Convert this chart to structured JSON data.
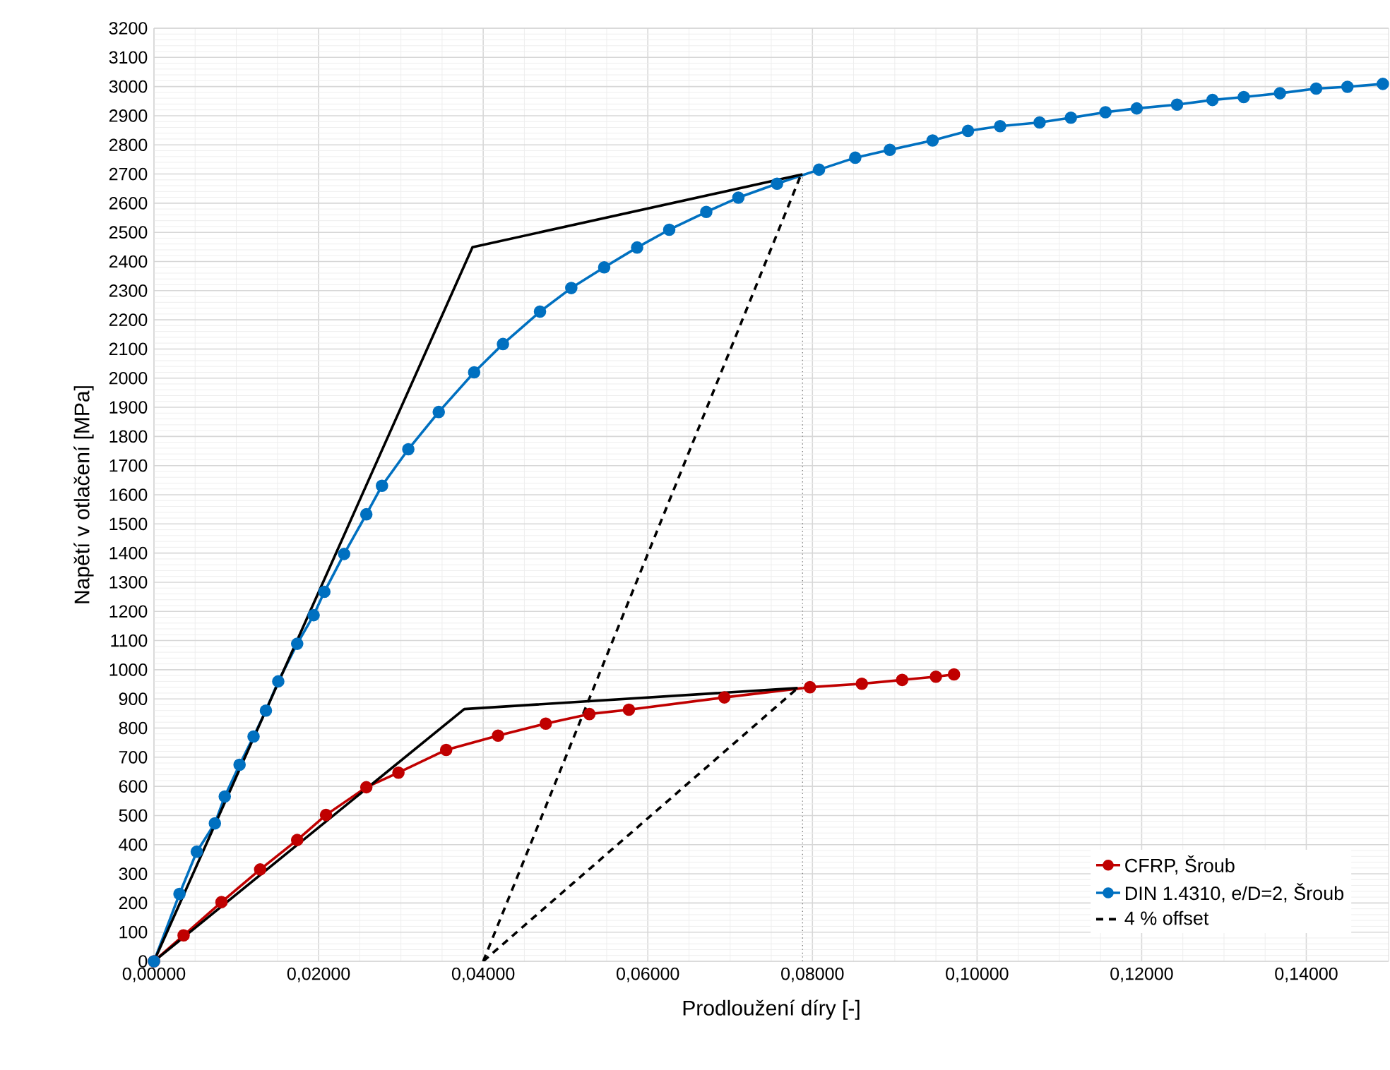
{
  "chart_data": {
    "type": "line",
    "xlabel": "Prodloužení díry [-]",
    "ylabel": "Napětí v otlačení [MPa]",
    "xlim": [
      0,
      0.15
    ],
    "ylim": [
      0,
      3200
    ],
    "xticks": [
      {
        "value": 0,
        "label": "0,00000"
      },
      {
        "value": 0.02,
        "label": "0,02000"
      },
      {
        "value": 0.04,
        "label": "0,04000"
      },
      {
        "value": 0.06,
        "label": "0,06000"
      },
      {
        "value": 0.08,
        "label": "0,08000"
      },
      {
        "value": 0.1,
        "label": "0,10000"
      },
      {
        "value": 0.12,
        "label": "0,12000"
      },
      {
        "value": 0.14,
        "label": "0,14000"
      }
    ],
    "yticks": [
      0,
      100,
      200,
      300,
      400,
      500,
      600,
      700,
      800,
      900,
      1000,
      1100,
      1200,
      1300,
      1400,
      1500,
      1600,
      1700,
      1800,
      1900,
      2000,
      2100,
      2200,
      2300,
      2400,
      2500,
      2600,
      2700,
      2800,
      2900,
      3000,
      3100,
      3200
    ],
    "grid": true,
    "legend": "bottom right",
    "series": [
      {
        "name": "CFRP, Šroub",
        "color": "#c00000",
        "marker": "circle",
        "line_style": "solid",
        "x": [
          0,
          0.0036,
          0.0082,
          0.0129,
          0.0174,
          0.0209,
          0.0258,
          0.0297,
          0.0355,
          0.0418,
          0.0476,
          0.0529,
          0.0577,
          0.0693,
          0.0797,
          0.086,
          0.0909,
          0.095,
          0.0972
        ],
        "values": [
          0,
          89,
          203,
          315,
          416,
          502,
          597,
          647,
          725,
          774,
          815,
          848,
          863,
          905,
          940,
          952,
          965,
          976,
          984
        ]
      },
      {
        "name": "DIN 1.4310, e/D=2, Šroub",
        "color": "#0070c0",
        "marker": "circle",
        "line_style": "solid",
        "x": [
          0,
          0.0031,
          0.0052,
          0.0074,
          0.0086,
          0.0104,
          0.0121,
          0.0136,
          0.0151,
          0.0174,
          0.0194,
          0.0207,
          0.0231,
          0.0258,
          0.0277,
          0.0309,
          0.0346,
          0.0389,
          0.0424,
          0.0469,
          0.0507,
          0.0547,
          0.0587,
          0.0626,
          0.0671,
          0.071,
          0.0757,
          0.0808,
          0.0852,
          0.0894,
          0.0946,
          0.0989,
          0.1028,
          0.1076,
          0.1114,
          0.1156,
          0.1194,
          0.1243,
          0.1286,
          0.1324,
          0.1368,
          0.1412,
          0.145,
          0.1493
        ],
        "values": [
          0,
          231,
          376,
          473,
          565,
          674,
          771,
          860,
          960,
          1089,
          1187,
          1267,
          1397,
          1533,
          1631,
          1756,
          1884,
          2020,
          2117,
          2228,
          2309,
          2380,
          2448,
          2509,
          2570,
          2619,
          2667,
          2715,
          2756,
          2783,
          2815,
          2848,
          2864,
          2877,
          2893,
          2912,
          2925,
          2938,
          2954,
          2964,
          2977,
          2993,
          2999,
          3009
        ]
      },
      {
        "name": "4 % offset",
        "color": "#000000",
        "marker": "none",
        "line_style": "dashed",
        "x": [
          0.04,
          0.0785
        ],
        "values": [
          0,
          2690
        ]
      },
      {
        "color": "#000000",
        "marker": "none",
        "line_style": "dashed",
        "x": [
          0.04,
          0.078
        ],
        "values": [
          0,
          932
        ]
      },
      {
        "color": "#000000",
        "marker": "none",
        "line_style": "solid",
        "x": [
          0,
          0.0387,
          0.0788
        ],
        "values": [
          0,
          2449,
          2699
        ]
      },
      {
        "color": "#000000",
        "marker": "none",
        "line_style": "solid",
        "x": [
          0,
          0.0377,
          0.0782
        ],
        "values": [
          0,
          865,
          937
        ]
      },
      {
        "color": "#808080",
        "marker": "none",
        "line_style": "dotted",
        "x": [
          0.0788,
          0.0788
        ],
        "values": [
          0,
          2699
        ]
      }
    ]
  }
}
